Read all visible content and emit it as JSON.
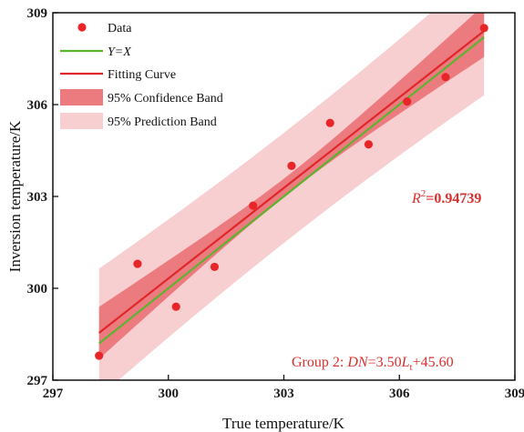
{
  "chart_data": {
    "type": "scatter",
    "xlabel": "True temperature/K",
    "ylabel": "Inversion temperature/K",
    "xlim": [
      297,
      309
    ],
    "ylim": [
      297,
      309
    ],
    "xticks": [
      "297",
      "300",
      "303",
      "306",
      "309"
    ],
    "yticks": [
      "297",
      "300",
      "303",
      "306",
      "309"
    ],
    "grid": false,
    "legend_position": "top-left",
    "series": [
      {
        "name": "Data",
        "kind": "points",
        "color": "#e8262a",
        "x": [
          298.2,
          299.2,
          300.2,
          301.2,
          302.2,
          303.2,
          304.2,
          305.2,
          306.2,
          307.2,
          308.2
        ],
        "y": [
          297.8,
          300.8,
          299.4,
          300.7,
          302.7,
          304.0,
          305.4,
          304.7,
          306.1,
          306.9,
          308.5
        ]
      },
      {
        "name": "Y=X",
        "kind": "line",
        "color": "#5cb32e",
        "slope": 1.0,
        "intercept": 0.0
      },
      {
        "name": "Fitting Curve",
        "kind": "line",
        "color": "#e0262a",
        "slope": 0.9861,
        "intercept": 4.49
      },
      {
        "name": "95% Confidence Band",
        "kind": "band",
        "color": "#ec7b80",
        "x": [
          298.2,
          303.2,
          308.2
        ],
        "half_width": [
          0.85,
          0.3,
          0.85
        ]
      },
      {
        "name": "95% Prediction Band",
        "kind": "band",
        "color": "#f8cfd1",
        "x": [
          298.2,
          303.2,
          308.2
        ],
        "half_width": [
          2.1,
          1.8,
          2.1
        ]
      }
    ],
    "legend": [
      {
        "label": "Data",
        "type": "point",
        "italic": false
      },
      {
        "label": "Y=X",
        "type": "line",
        "italic": true
      },
      {
        "label": "Fitting Curve",
        "type": "line",
        "italic": false
      },
      {
        "label": "95% Confidence Band",
        "type": "band",
        "italic": false
      },
      {
        "label": "95% Prediction Band",
        "type": "band",
        "italic": false
      }
    ],
    "annotations": {
      "r2_label": "R",
      "r2_sup": "2",
      "r2_value": "=0.94739",
      "group_prefix": "Group 2: ",
      "dn": "DN",
      "eq_mid": "=3.50",
      "lt": "L",
      "lt_sub": "t",
      "eq_end": "+45.60"
    }
  }
}
